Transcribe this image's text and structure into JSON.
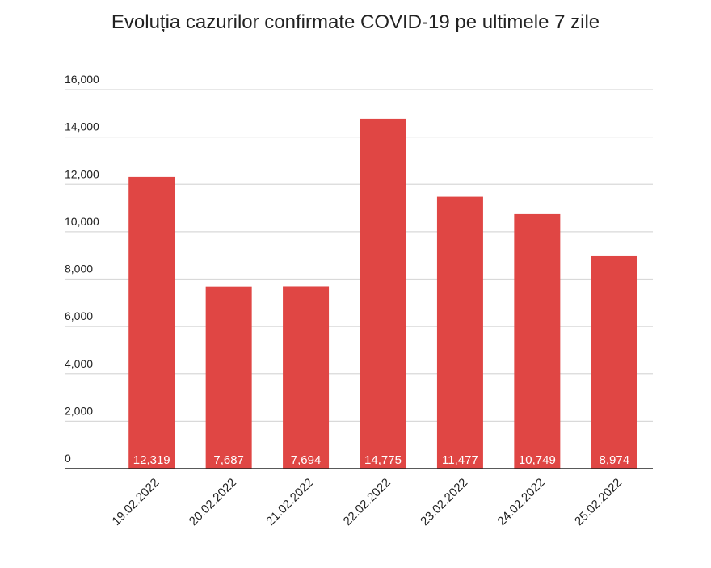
{
  "chart_data": {
    "type": "bar",
    "title": "Evoluția cazurilor confirmate COVID-19 pe ultimele 7 zile",
    "xlabel": "",
    "ylabel": "",
    "categories": [
      "19.02.2022",
      "20.02.2022",
      "21.02.2022",
      "22.02.2022",
      "23.02.2022",
      "24.02.2022",
      "25.02.2022"
    ],
    "values": [
      12319,
      7687,
      7694,
      14775,
      11477,
      10749,
      8974
    ],
    "data_labels": [
      "12,319",
      "7,687",
      "7,694",
      "14,775",
      "11,477",
      "10,749",
      "8,974"
    ],
    "ylim": [
      0,
      16000
    ],
    "yticks": [
      0,
      2000,
      4000,
      6000,
      8000,
      10000,
      12000,
      14000,
      16000
    ],
    "ytick_labels": [
      "0",
      "2,000",
      "4,000",
      "6,000",
      "8,000",
      "10,000",
      "12,000",
      "14,000",
      "16,000"
    ],
    "grid": true,
    "legend": "none",
    "colors": {
      "bar": "#E04644",
      "grid": "#D9D9D9",
      "axis": "#222222",
      "label": "#FFFFFF"
    }
  }
}
